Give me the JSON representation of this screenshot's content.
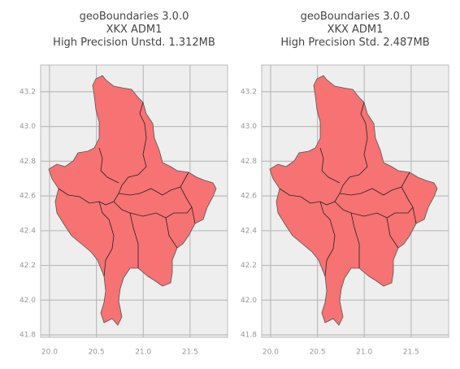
{
  "chart_data": [
    {
      "type": "map",
      "title": [
        "geoBoundaries 3.0.0",
        "XKX ADM1",
        "High Precision Unstd. 1.312MB"
      ],
      "xlim": [
        19.905,
        21.9
      ],
      "ylim": [
        41.786,
        43.354
      ],
      "xticks": [
        {
          "value": 20,
          "label": "20.0"
        },
        20.5,
        {
          "value": 21,
          "label": "21.0"
        },
        21.5
      ],
      "yticks": [
        {
          "value": 41.8,
          "label": "41.8"
        },
        {
          "value": 42,
          "label": "42.0"
        },
        42.2,
        42.4,
        42.6,
        42.8,
        {
          "value": 43,
          "label": "43.0"
        },
        43.2
      ],
      "grid": true,
      "color": "#f77272"
    },
    {
      "type": "map",
      "title": [
        "geoBoundaries 3.0.0",
        "XKX ADM1",
        "High Precision Std. 2.487MB"
      ],
      "xlim": [
        19.905,
        21.9
      ],
      "ylim": [
        41.786,
        43.354
      ],
      "xticks": [
        {
          "value": 20,
          "label": "20.0"
        },
        20.5,
        {
          "value": 21,
          "label": "21.0"
        },
        21.5
      ],
      "yticks": [
        {
          "value": 41.8,
          "label": "41.8"
        },
        {
          "value": 42,
          "label": "42.0"
        },
        42.2,
        42.4,
        42.6,
        42.8,
        {
          "value": 43,
          "label": "43.0"
        },
        43.2
      ],
      "grid": true,
      "color": "#f77272"
    }
  ]
}
